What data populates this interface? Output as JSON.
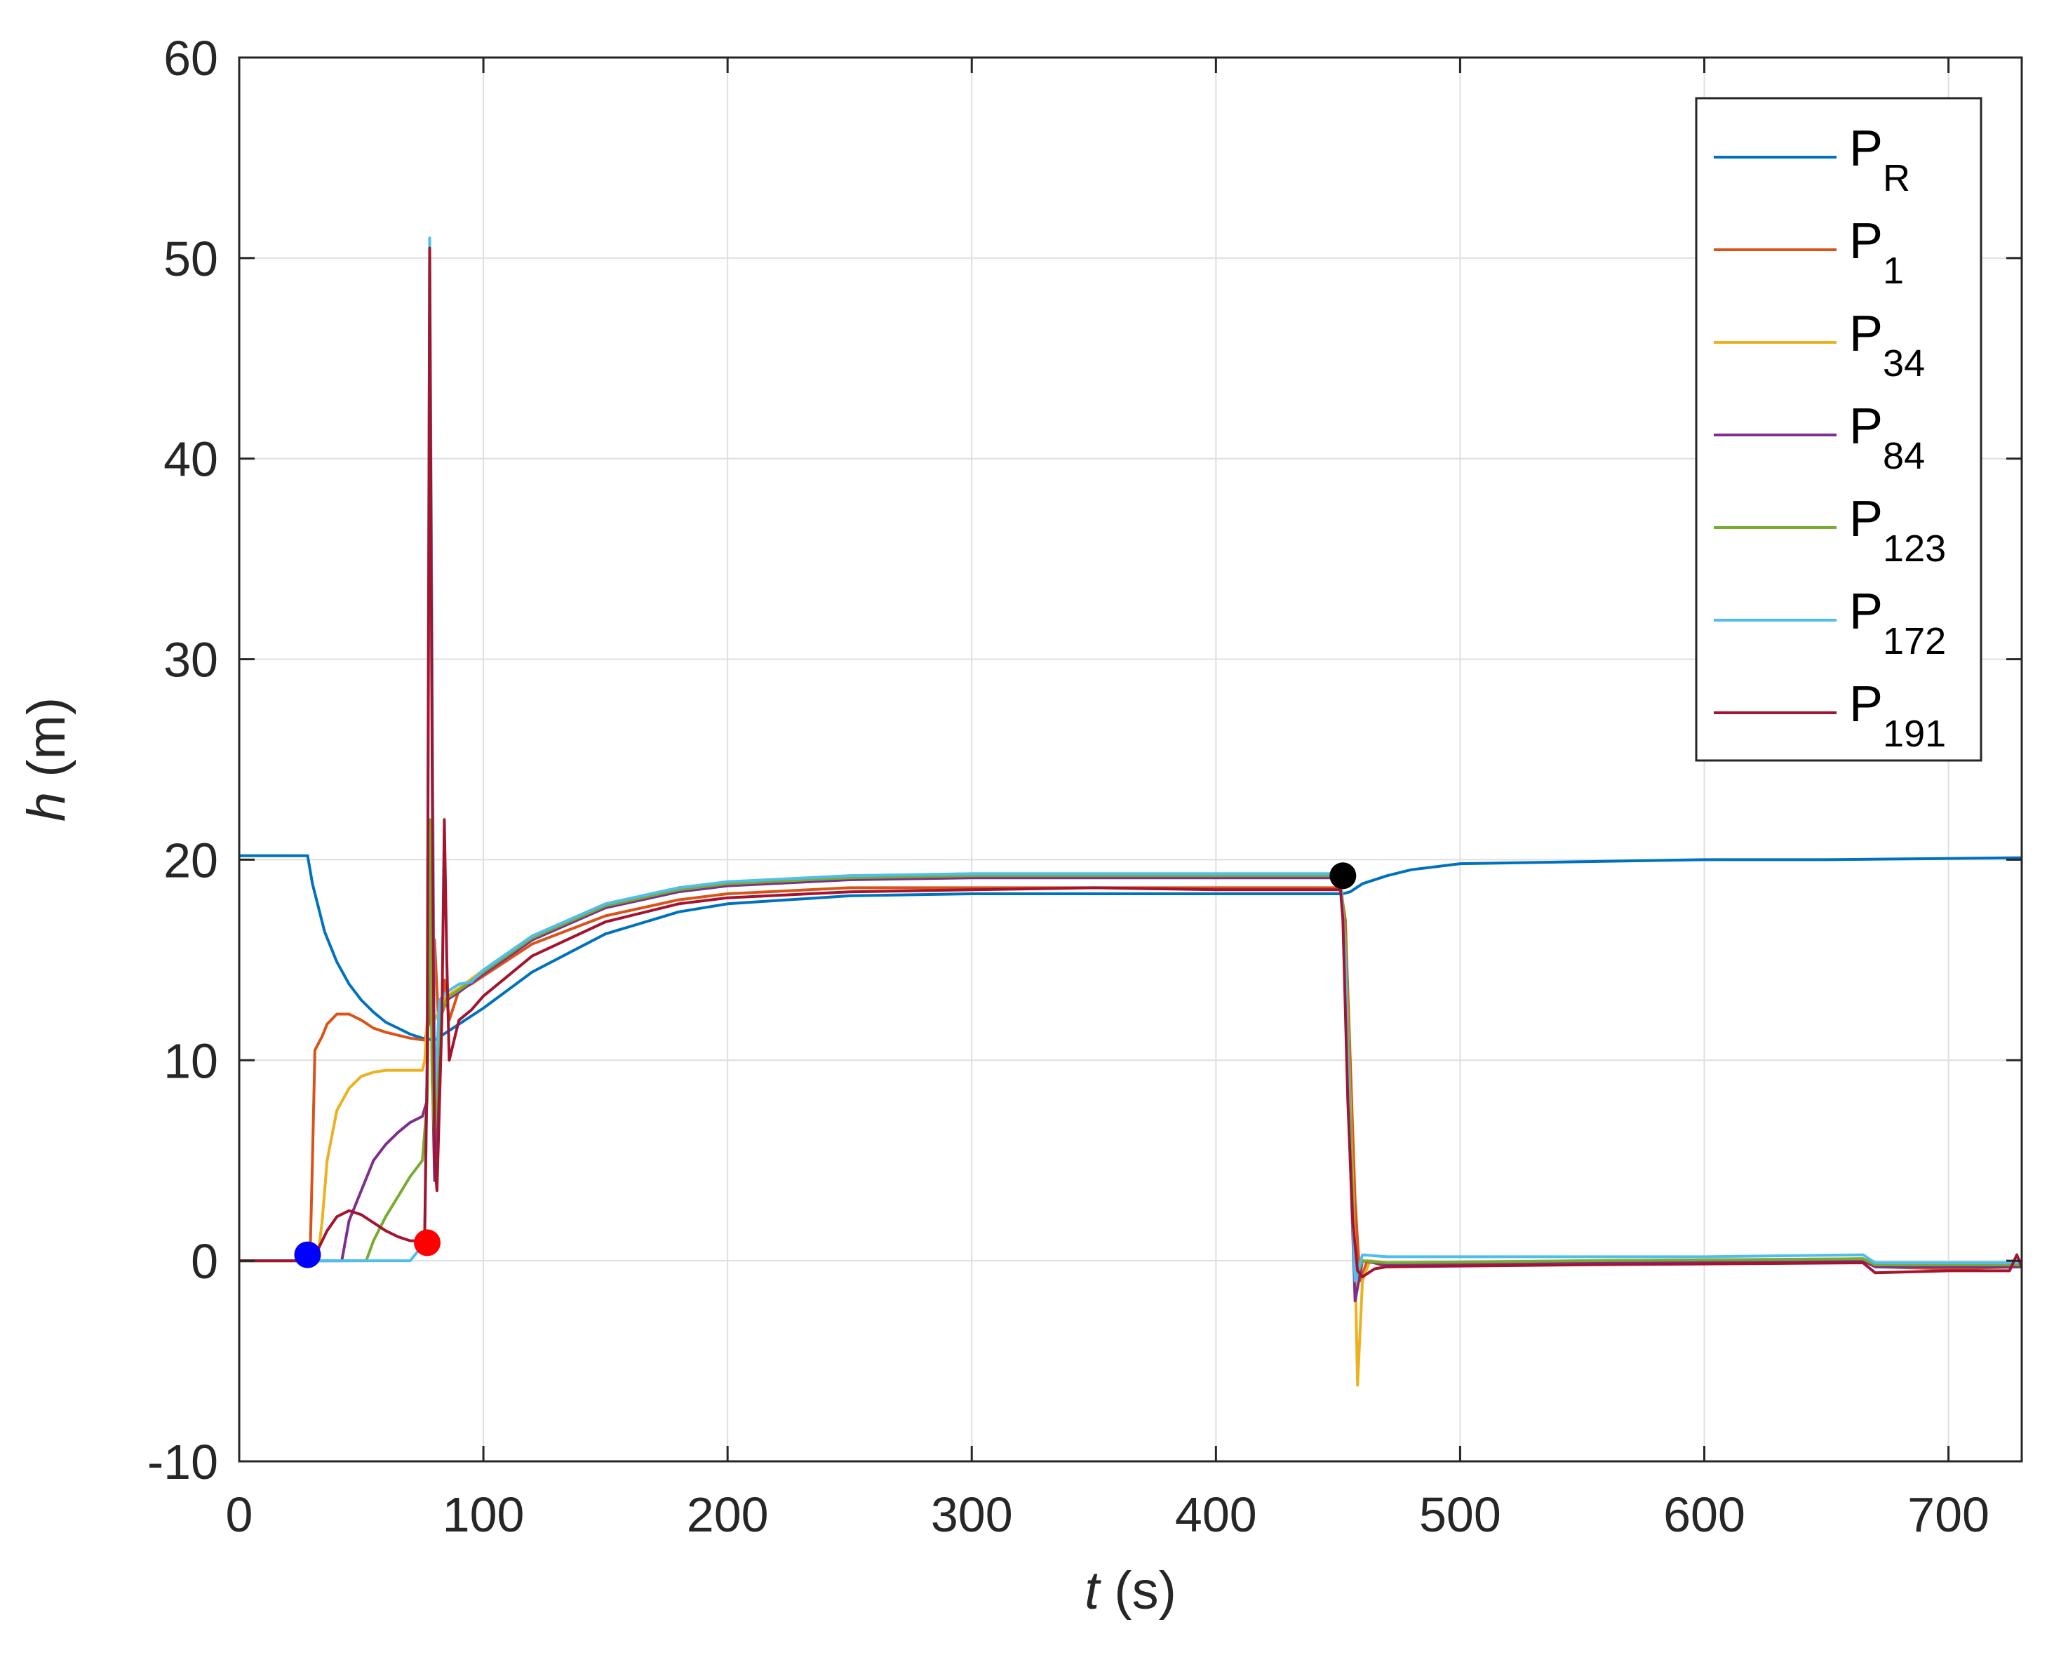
{
  "chart_data": {
    "type": "line",
    "title": "",
    "xlabel": {
      "var": "t",
      "unit": " (s)"
    },
    "ylabel": {
      "var": "h",
      "unit": " (m)"
    },
    "xlim": [
      0,
      730
    ],
    "ylim": [
      -10,
      60
    ],
    "xticks": [
      "0",
      "100",
      "200",
      "300",
      "400",
      "500",
      "600",
      "700"
    ],
    "yticks": [
      "-10",
      "0",
      "10",
      "20",
      "30",
      "40",
      "50",
      "60"
    ],
    "grid": true,
    "legend_position": "top-right",
    "series": [
      {
        "name": "P_R",
        "base": "P",
        "sub": "R",
        "color": "#0072BD",
        "points": [
          [
            0,
            20.2
          ],
          [
            28,
            20.2
          ],
          [
            30,
            18.8
          ],
          [
            35,
            16.4
          ],
          [
            40,
            14.9
          ],
          [
            45,
            13.8
          ],
          [
            50,
            13.0
          ],
          [
            55,
            12.4
          ],
          [
            60,
            11.9
          ],
          [
            65,
            11.6
          ],
          [
            70,
            11.3
          ],
          [
            75,
            11.1
          ],
          [
            80,
            11.0
          ],
          [
            85,
            11.4
          ],
          [
            90,
            11.8
          ],
          [
            100,
            12.6
          ],
          [
            120,
            14.4
          ],
          [
            150,
            16.3
          ],
          [
            180,
            17.4
          ],
          [
            200,
            17.8
          ],
          [
            250,
            18.2
          ],
          [
            300,
            18.3
          ],
          [
            350,
            18.3
          ],
          [
            400,
            18.3
          ],
          [
            452,
            18.3
          ],
          [
            455,
            18.4
          ],
          [
            460,
            18.8
          ],
          [
            470,
            19.2
          ],
          [
            480,
            19.5
          ],
          [
            500,
            19.8
          ],
          [
            550,
            19.9
          ],
          [
            600,
            20.0
          ],
          [
            650,
            20.0
          ],
          [
            730,
            20.1
          ]
        ]
      },
      {
        "name": "P_1",
        "base": "P",
        "sub": "1",
        "color": "#D95319",
        "points": [
          [
            0,
            0
          ],
          [
            29,
            0
          ],
          [
            30,
            5
          ],
          [
            31,
            10.5
          ],
          [
            34,
            11.2
          ],
          [
            36,
            11.8
          ],
          [
            40,
            12.3
          ],
          [
            45,
            12.3
          ],
          [
            50,
            12.0
          ],
          [
            55,
            11.6
          ],
          [
            60,
            11.4
          ],
          [
            70,
            11.1
          ],
          [
            76,
            11.0
          ],
          [
            78,
            12.0
          ],
          [
            80,
            16
          ],
          [
            82,
            11
          ],
          [
            84,
            14
          ],
          [
            86,
            12
          ],
          [
            90,
            13.5
          ],
          [
            95,
            13.8
          ],
          [
            100,
            14.2
          ],
          [
            120,
            15.8
          ],
          [
            150,
            17.2
          ],
          [
            180,
            18.0
          ],
          [
            200,
            18.3
          ],
          [
            250,
            18.6
          ],
          [
            300,
            18.6
          ],
          [
            350,
            18.6
          ],
          [
            400,
            18.6
          ],
          [
            451,
            18.6
          ],
          [
            453,
            17
          ],
          [
            455,
            10
          ],
          [
            457,
            3
          ],
          [
            459,
            -1
          ],
          [
            462,
            0
          ],
          [
            470,
            -0.3
          ],
          [
            520,
            -0.2
          ],
          [
            600,
            0
          ],
          [
            665,
            0.1
          ],
          [
            670,
            -0.3
          ],
          [
            700,
            -0.4
          ],
          [
            730,
            -0.3
          ]
        ]
      },
      {
        "name": "P_34",
        "base": "P",
        "sub": "34",
        "color": "#EDB120",
        "points": [
          [
            0,
            0
          ],
          [
            32,
            0
          ],
          [
            34,
            2
          ],
          [
            36,
            5
          ],
          [
            40,
            7.5
          ],
          [
            45,
            8.6
          ],
          [
            50,
            9.2
          ],
          [
            55,
            9.4
          ],
          [
            60,
            9.5
          ],
          [
            75,
            9.5
          ],
          [
            76,
            10
          ],
          [
            78,
            14
          ],
          [
            80,
            12
          ],
          [
            85,
            13.2
          ],
          [
            90,
            13.6
          ],
          [
            100,
            14.5
          ],
          [
            120,
            16.2
          ],
          [
            150,
            17.8
          ],
          [
            180,
            18.6
          ],
          [
            200,
            18.9
          ],
          [
            250,
            19.2
          ],
          [
            300,
            19.3
          ],
          [
            400,
            19.3
          ],
          [
            451,
            19.3
          ],
          [
            453,
            16
          ],
          [
            455,
            8
          ],
          [
            457,
            0
          ],
          [
            458,
            -6.2
          ],
          [
            460,
            -1
          ],
          [
            463,
            0
          ],
          [
            470,
            -0.1
          ],
          [
            550,
            0
          ],
          [
            665,
            0.1
          ],
          [
            670,
            -0.2
          ],
          [
            700,
            -0.2
          ],
          [
            730,
            -0.2
          ]
        ]
      },
      {
        "name": "P_84",
        "base": "P",
        "sub": "84",
        "color": "#7E2F8E",
        "points": [
          [
            0,
            0
          ],
          [
            42,
            0
          ],
          [
            45,
            2
          ],
          [
            50,
            3.5
          ],
          [
            55,
            5
          ],
          [
            60,
            5.8
          ],
          [
            65,
            6.4
          ],
          [
            70,
            6.9
          ],
          [
            75,
            7.2
          ],
          [
            77,
            8
          ],
          [
            78,
            20
          ],
          [
            79,
            10
          ],
          [
            80,
            4
          ],
          [
            82,
            12
          ],
          [
            85,
            13
          ],
          [
            90,
            13.4
          ],
          [
            100,
            14.3
          ],
          [
            120,
            16.0
          ],
          [
            150,
            17.6
          ],
          [
            180,
            18.4
          ],
          [
            200,
            18.7
          ],
          [
            250,
            19.0
          ],
          [
            300,
            19.1
          ],
          [
            400,
            19.1
          ],
          [
            451,
            19.1
          ],
          [
            453,
            15
          ],
          [
            455,
            5
          ],
          [
            457,
            -2
          ],
          [
            460,
            0
          ],
          [
            470,
            -0.2
          ],
          [
            550,
            -0.1
          ],
          [
            665,
            0
          ],
          [
            670,
            -0.3
          ],
          [
            730,
            -0.3
          ]
        ]
      },
      {
        "name": "P_123",
        "base": "P",
        "sub": "123",
        "color": "#77AC30",
        "points": [
          [
            0,
            0
          ],
          [
            52,
            0
          ],
          [
            55,
            1
          ],
          [
            60,
            2.2
          ],
          [
            65,
            3.2
          ],
          [
            70,
            4.2
          ],
          [
            75,
            5.0
          ],
          [
            77,
            8
          ],
          [
            78,
            22
          ],
          [
            79,
            9
          ],
          [
            80,
            6
          ],
          [
            82,
            12
          ],
          [
            85,
            13.1
          ],
          [
            90,
            13.5
          ],
          [
            100,
            14.4
          ],
          [
            120,
            16.1
          ],
          [
            150,
            17.7
          ],
          [
            180,
            18.5
          ],
          [
            200,
            18.8
          ],
          [
            250,
            19.1
          ],
          [
            300,
            19.2
          ],
          [
            400,
            19.2
          ],
          [
            451,
            19.2
          ],
          [
            453,
            16
          ],
          [
            455,
            7
          ],
          [
            457,
            -1
          ],
          [
            460,
            0
          ],
          [
            470,
            -0.1
          ],
          [
            550,
            0
          ],
          [
            665,
            0.1
          ],
          [
            670,
            -0.2
          ],
          [
            730,
            -0.2
          ]
        ]
      },
      {
        "name": "P_172",
        "base": "P",
        "sub": "172",
        "color": "#4DBEEE",
        "points": [
          [
            0,
            0
          ],
          [
            70,
            0
          ],
          [
            74,
            0.6
          ],
          [
            76,
            1.5
          ],
          [
            77,
            10
          ],
          [
            78,
            51
          ],
          [
            79,
            30
          ],
          [
            80,
            8
          ],
          [
            82,
            13
          ],
          [
            85,
            13.4
          ],
          [
            90,
            13.8
          ],
          [
            95,
            13.9
          ],
          [
            100,
            14.5
          ],
          [
            120,
            16.2
          ],
          [
            150,
            17.8
          ],
          [
            180,
            18.6
          ],
          [
            200,
            18.9
          ],
          [
            250,
            19.2
          ],
          [
            300,
            19.3
          ],
          [
            400,
            19.3
          ],
          [
            451,
            19.3
          ],
          [
            453,
            15
          ],
          [
            455,
            5
          ],
          [
            457,
            -1
          ],
          [
            460,
            0.3
          ],
          [
            470,
            0.2
          ],
          [
            550,
            0.2
          ],
          [
            600,
            0.2
          ],
          [
            665,
            0.3
          ],
          [
            670,
            -0.1
          ],
          [
            700,
            -0.1
          ],
          [
            730,
            -0.1
          ]
        ]
      },
      {
        "name": "P_191",
        "base": "P",
        "sub": "191",
        "color": "#A2142F",
        "points": [
          [
            0,
            0
          ],
          [
            30,
            0
          ],
          [
            32,
            0.5
          ],
          [
            36,
            1.5
          ],
          [
            40,
            2.2
          ],
          [
            45,
            2.5
          ],
          [
            50,
            2.3
          ],
          [
            55,
            1.9
          ],
          [
            60,
            1.5
          ],
          [
            65,
            1.2
          ],
          [
            70,
            1.0
          ],
          [
            75,
            1.0
          ],
          [
            76,
            1.5
          ],
          [
            77,
            10
          ],
          [
            78,
            50.5
          ],
          [
            79,
            25
          ],
          [
            80,
            5
          ],
          [
            81,
            3.5
          ],
          [
            83,
            12
          ],
          [
            84,
            22
          ],
          [
            85,
            15
          ],
          [
            86,
            10
          ],
          [
            88,
            11
          ],
          [
            90,
            12
          ],
          [
            95,
            12.5
          ],
          [
            100,
            13.2
          ],
          [
            120,
            15.2
          ],
          [
            150,
            16.9
          ],
          [
            180,
            17.8
          ],
          [
            200,
            18.1
          ],
          [
            250,
            18.4
          ],
          [
            300,
            18.5
          ],
          [
            350,
            18.6
          ],
          [
            400,
            18.5
          ],
          [
            451,
            18.5
          ],
          [
            452,
            17
          ],
          [
            454,
            8
          ],
          [
            456,
            2
          ],
          [
            458,
            -0.5
          ],
          [
            460,
            -0.8
          ],
          [
            465,
            -0.4
          ],
          [
            470,
            -0.3
          ],
          [
            550,
            -0.2
          ],
          [
            665,
            -0.1
          ],
          [
            670,
            -0.6
          ],
          [
            700,
            -0.5
          ],
          [
            725,
            -0.5
          ],
          [
            728,
            0.3
          ],
          [
            730,
            -0.3
          ]
        ]
      }
    ],
    "markers": [
      {
        "t": 28,
        "h": 0.3,
        "color": "#0000FF"
      },
      {
        "t": 77,
        "h": 0.9,
        "color": "#FF0000"
      },
      {
        "t": 452,
        "h": 19.2,
        "color": "#000000"
      }
    ]
  }
}
